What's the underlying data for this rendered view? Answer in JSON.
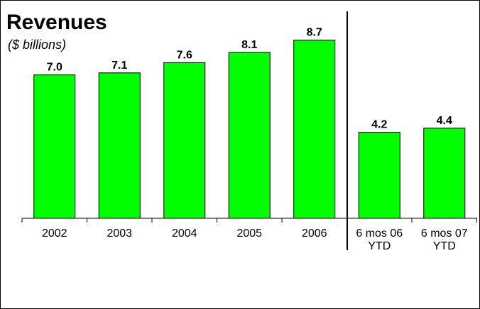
{
  "chart_data": {
    "type": "bar",
    "title": "Revenues",
    "subtitle": "($ billions)",
    "categories": [
      [
        "2002"
      ],
      [
        "2003"
      ],
      [
        "2004"
      ],
      [
        "2005"
      ],
      [
        "2006"
      ],
      [
        "6 mos 06",
        "YTD"
      ],
      [
        "6 mos 07",
        "YTD"
      ]
    ],
    "values": [
      7.0,
      7.1,
      7.6,
      8.1,
      8.7,
      4.2,
      4.4
    ],
    "value_labels": [
      "7.0",
      "7.1",
      "7.6",
      "8.1",
      "8.7",
      "4.2",
      "4.4"
    ],
    "ylim": [
      0,
      10
    ],
    "xlabel": "",
    "ylabel": "",
    "grid": false,
    "divider_after_index": 4,
    "bar_color": "#00ff00",
    "bar_outline_color": "#000000"
  }
}
